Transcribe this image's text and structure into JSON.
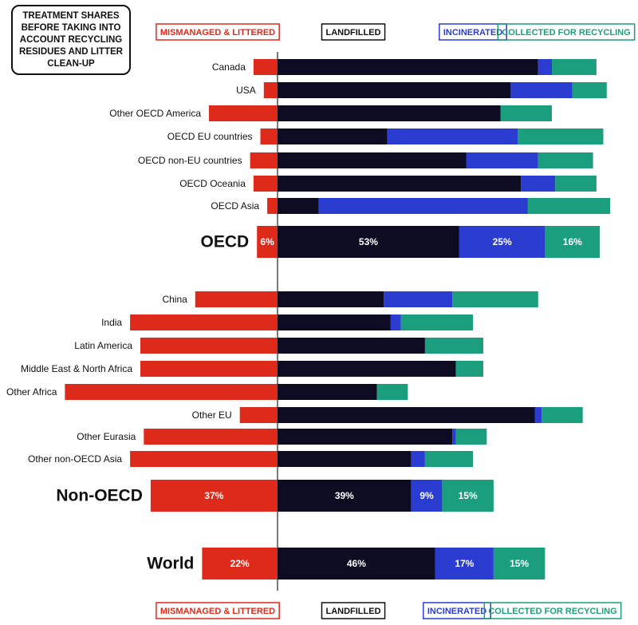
{
  "chart_data": {
    "type": "bar",
    "orientation": "horizontal",
    "title": "TREATMENT SHARES BEFORE TAKING INTO ACCOUNT RECYCLING RESIDUES AND LITTER CLEAN-UP",
    "categories": [
      "Canada",
      "USA",
      "Other OECD America",
      "OECD EU countries",
      "OECD non-EU countries",
      "OECD Oceania",
      "OECD Asia",
      "OECD",
      "China",
      "India",
      "Latin America",
      "Middle East & North Africa",
      "Other Africa",
      "Other EU",
      "Other Eurasia",
      "Other non-OECD Asia",
      "Non-OECD",
      "World"
    ],
    "series": [
      {
        "name": "MISMANAGED & LITTERED",
        "color": "#dd2a1b",
        "values": [
          7,
          4,
          20,
          5,
          8,
          7,
          3,
          6,
          24,
          43,
          40,
          40,
          62,
          11,
          39,
          43,
          37,
          22
        ],
        "value_labels": [
          null,
          null,
          null,
          null,
          null,
          null,
          null,
          "6%",
          null,
          null,
          null,
          null,
          null,
          null,
          null,
          null,
          "37%",
          "22%"
        ]
      },
      {
        "name": "LANDFILLED",
        "color": "#0d0c22",
        "values": [
          76,
          68,
          65,
          32,
          55,
          71,
          12,
          53,
          31,
          33,
          43,
          52,
          29,
          75,
          51,
          39,
          39,
          46
        ],
        "value_labels": [
          null,
          null,
          null,
          null,
          null,
          null,
          null,
          "53%",
          null,
          null,
          null,
          null,
          null,
          null,
          null,
          null,
          "39%",
          "46%"
        ]
      },
      {
        "name": "INCINERATED",
        "color": "#2b3dd1",
        "values": [
          4,
          18,
          0,
          38,
          21,
          10,
          61,
          25,
          20,
          3,
          0,
          0,
          0,
          2,
          1,
          4,
          9,
          17
        ],
        "value_labels": [
          null,
          null,
          null,
          null,
          null,
          null,
          null,
          "25%",
          null,
          null,
          null,
          null,
          null,
          null,
          null,
          null,
          "9%",
          "17%"
        ]
      },
      {
        "name": "COLLECTED FOR RECYCLING",
        "color": "#1b9e7e",
        "values": [
          13,
          10,
          15,
          25,
          16,
          12,
          24,
          16,
          25,
          21,
          17,
          8,
          9,
          12,
          9,
          14,
          15,
          15
        ],
        "value_labels": [
          null,
          null,
          null,
          null,
          null,
          null,
          null,
          "16%",
          null,
          null,
          null,
          null,
          null,
          null,
          null,
          null,
          "15%",
          "15%"
        ]
      }
    ]
  }
}
